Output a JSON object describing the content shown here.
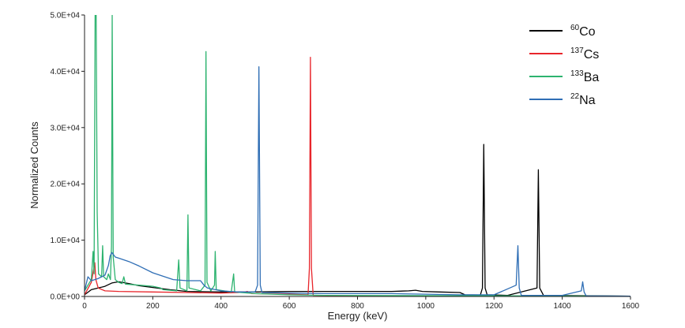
{
  "chart_data": {
    "type": "line",
    "title": "",
    "xlabel": "Energy (keV)",
    "ylabel": "Normalized Counts",
    "xlim": [
      0,
      1600
    ],
    "ylim": [
      0,
      50000
    ],
    "x_ticks": [
      "0",
      "200",
      "400",
      "600",
      "800",
      "1000",
      "1200",
      "1400",
      "1600"
    ],
    "y_ticks": [
      "0.0E+00",
      "1.0E+04",
      "2.0E+04",
      "3.0E+04",
      "4.0E+04",
      "5.0E+04"
    ],
    "grid": false,
    "legend_position": "top-right",
    "series": [
      {
        "name": "60Co",
        "legend_sup": "60",
        "legend_text": "Co",
        "color": "#000000",
        "points": [
          [
            0,
            300
          ],
          [
            20,
            1200
          ],
          [
            40,
            1500
          ],
          [
            60,
            1800
          ],
          [
            80,
            2400
          ],
          [
            100,
            2600
          ],
          [
            130,
            2300
          ],
          [
            160,
            1900
          ],
          [
            200,
            1600
          ],
          [
            250,
            1200
          ],
          [
            300,
            900
          ],
          [
            400,
            800
          ],
          [
            500,
            800
          ],
          [
            600,
            900
          ],
          [
            700,
            900
          ],
          [
            800,
            900
          ],
          [
            900,
            900
          ],
          [
            950,
            1000
          ],
          [
            970,
            1100
          ],
          [
            990,
            900
          ],
          [
            1040,
            800
          ],
          [
            1100,
            700
          ],
          [
            1115,
            300
          ],
          [
            1160,
            250
          ],
          [
            1166,
            1500
          ],
          [
            1170,
            27000
          ],
          [
            1174,
            1500
          ],
          [
            1180,
            300
          ],
          [
            1240,
            200
          ],
          [
            1326,
            1500
          ],
          [
            1330,
            22500
          ],
          [
            1334,
            1500
          ],
          [
            1345,
            200
          ],
          [
            1600,
            50
          ]
        ]
      },
      {
        "name": "137Cs",
        "legend_sup": "137",
        "legend_text": "Cs",
        "color": "#e8252b",
        "points": [
          [
            0,
            300
          ],
          [
            20,
            2500
          ],
          [
            30,
            6000
          ],
          [
            33,
            3000
          ],
          [
            40,
            1500
          ],
          [
            60,
            1000
          ],
          [
            100,
            900
          ],
          [
            200,
            800
          ],
          [
            300,
            700
          ],
          [
            400,
            600
          ],
          [
            450,
            700
          ],
          [
            470,
            800
          ],
          [
            477,
            900
          ],
          [
            490,
            500
          ],
          [
            600,
            400
          ],
          [
            655,
            300
          ],
          [
            659,
            5000
          ],
          [
            662,
            42500
          ],
          [
            665,
            5000
          ],
          [
            670,
            200
          ],
          [
            800,
            100
          ],
          [
            1600,
            30
          ]
        ]
      },
      {
        "name": "133Ba",
        "legend_sup": "133",
        "legend_text": "Ba",
        "color": "#2db36f",
        "points": [
          [
            0,
            1000
          ],
          [
            20,
            3000
          ],
          [
            25,
            8000
          ],
          [
            28,
            4000
          ],
          [
            31,
            50000
          ],
          [
            34,
            50000
          ],
          [
            37,
            15000
          ],
          [
            41,
            4000
          ],
          [
            50,
            3500
          ],
          [
            53,
            9000
          ],
          [
            56,
            3500
          ],
          [
            65,
            3000
          ],
          [
            70,
            4000
          ],
          [
            76,
            3000
          ],
          [
            79,
            9000
          ],
          [
            81,
            50000
          ],
          [
            84,
            7000
          ],
          [
            90,
            3000
          ],
          [
            100,
            2500
          ],
          [
            110,
            2300
          ],
          [
            115,
            3500
          ],
          [
            120,
            2200
          ],
          [
            160,
            2000
          ],
          [
            200,
            1800
          ],
          [
            223,
            1500
          ],
          [
            230,
            1200
          ],
          [
            270,
            1000
          ],
          [
            276,
            6500
          ],
          [
            280,
            1500
          ],
          [
            300,
            1000
          ],
          [
            303,
            14500
          ],
          [
            306,
            1500
          ],
          [
            340,
            1000
          ],
          [
            353,
            2000
          ],
          [
            356,
            43500
          ],
          [
            359,
            2500
          ],
          [
            370,
            1000
          ],
          [
            381,
            2000
          ],
          [
            383,
            8000
          ],
          [
            386,
            1200
          ],
          [
            430,
            800
          ],
          [
            437,
            4000
          ],
          [
            440,
            800
          ],
          [
            500,
            500
          ],
          [
            600,
            300
          ],
          [
            700,
            200
          ],
          [
            1600,
            50
          ]
        ]
      },
      {
        "name": "22Na",
        "legend_sup": "22",
        "legend_text": "Na",
        "color": "#2f6eb5",
        "points": [
          [
            0,
            1000
          ],
          [
            10,
            3500
          ],
          [
            20,
            2800
          ],
          [
            30,
            3000
          ],
          [
            40,
            3200
          ],
          [
            60,
            3800
          ],
          [
            70,
            5500
          ],
          [
            75,
            7200
          ],
          [
            80,
            7800
          ],
          [
            90,
            7000
          ],
          [
            100,
            6800
          ],
          [
            130,
            6200
          ],
          [
            160,
            5400
          ],
          [
            200,
            4200
          ],
          [
            240,
            3400
          ],
          [
            260,
            3000
          ],
          [
            300,
            2800
          ],
          [
            340,
            2800
          ],
          [
            350,
            2000
          ],
          [
            360,
            1500
          ],
          [
            400,
            1000
          ],
          [
            450,
            800
          ],
          [
            500,
            800
          ],
          [
            507,
            2000
          ],
          [
            511,
            40800
          ],
          [
            515,
            2000
          ],
          [
            520,
            700
          ],
          [
            600,
            600
          ],
          [
            700,
            500
          ],
          [
            800,
            500
          ],
          [
            900,
            500
          ],
          [
            1000,
            400
          ],
          [
            1100,
            300
          ],
          [
            1200,
            300
          ],
          [
            1265,
            2000
          ],
          [
            1270,
            9000
          ],
          [
            1274,
            1500
          ],
          [
            1280,
            200
          ],
          [
            1400,
            200
          ],
          [
            1456,
            1000
          ],
          [
            1460,
            2600
          ],
          [
            1464,
            800
          ],
          [
            1470,
            100
          ],
          [
            1600,
            50
          ]
        ]
      }
    ]
  }
}
